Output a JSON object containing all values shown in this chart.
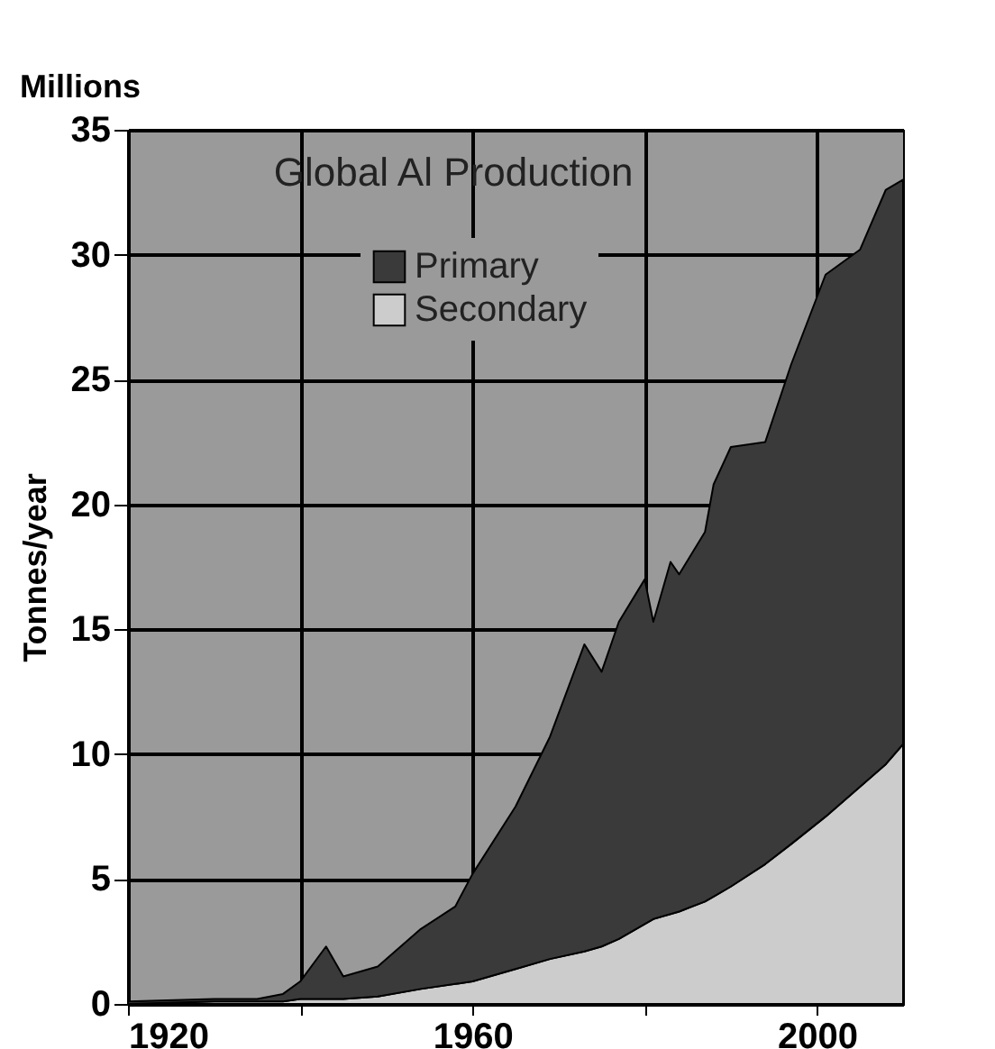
{
  "chart_data": {
    "type": "area",
    "stacked": true,
    "title": "Global Al Production",
    "ylabel": "Tonnes/year",
    "annotations": [
      "Millions"
    ],
    "x": [
      1920,
      1930,
      1935,
      1938,
      1940,
      1943,
      1945,
      1949,
      1954,
      1958,
      1960,
      1965,
      1969,
      1973,
      1975,
      1977,
      1980,
      1981,
      1983,
      1984,
      1987,
      1988,
      1990,
      1994,
      1997,
      2001,
      2005,
      2008,
      2010
    ],
    "series": [
      {
        "name": "Secondary",
        "color": "#cccccc",
        "values": [
          0.0,
          0.1,
          0.1,
          0.1,
          0.2,
          0.2,
          0.2,
          0.3,
          0.6,
          0.8,
          0.9,
          1.4,
          1.8,
          2.1,
          2.3,
          2.6,
          3.2,
          3.4,
          3.6,
          3.7,
          4.1,
          4.3,
          4.7,
          5.6,
          6.4,
          7.5,
          8.7,
          9.6,
          10.4
        ]
      },
      {
        "name": "Primary",
        "color": "#3a3a3a",
        "values": [
          0.1,
          0.1,
          0.1,
          0.3,
          0.7,
          2.1,
          0.9,
          1.2,
          2.4,
          3.1,
          4.3,
          6.5,
          8.9,
          12.3,
          11.0,
          12.7,
          13.8,
          11.9,
          14.1,
          13.5,
          14.8,
          16.5,
          17.6,
          16.9,
          19.2,
          21.7,
          21.5,
          23.0,
          22.6
        ]
      }
    ],
    "xlim": [
      1920,
      2010
    ],
    "xticks": [
      1920,
      {
        "value": 1940,
        "label": null
      },
      1960,
      {
        "value": 1980,
        "label": null
      },
      2000
    ],
    "ylim": [
      0,
      35
    ],
    "yticks": [
      0,
      5,
      10,
      15,
      20,
      25,
      30,
      35
    ],
    "grid": true,
    "legend": "top"
  }
}
